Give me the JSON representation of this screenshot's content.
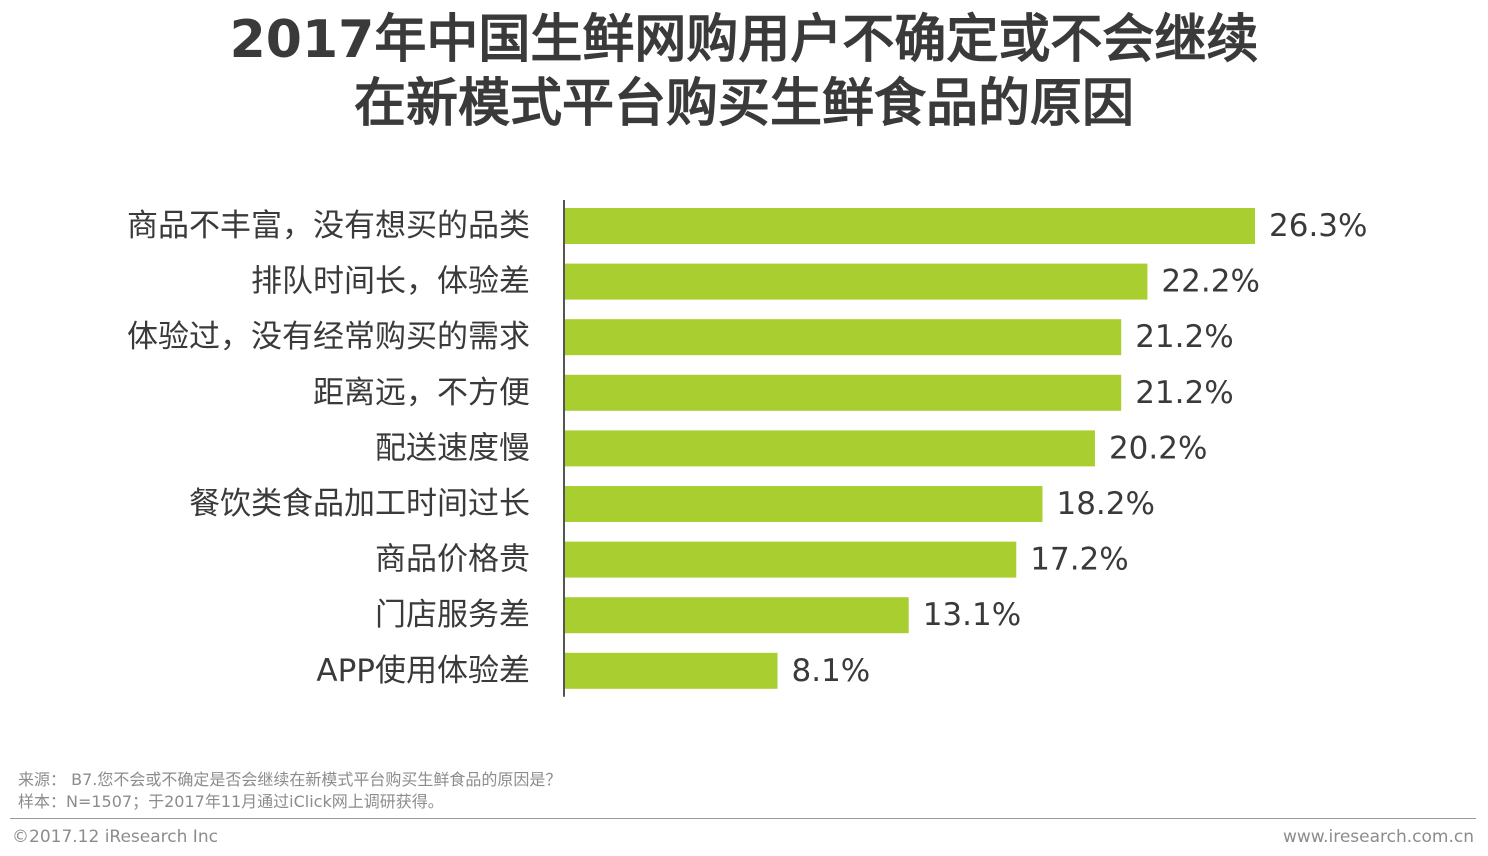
{
  "header": {
    "title_line_1": "2017年中国生鲜网购用户不确定或不会继续",
    "title_line_2": "在新模式平台购买生鲜食品的原因"
  },
  "chart_data": {
    "type": "bar",
    "orientation": "horizontal",
    "categories": [
      "商品不丰富，没有想买的品类",
      "排队时间长，体验差",
      "体验过，没有经常购买的需求",
      "距离远，不方便",
      "配送速度慢",
      "餐饮类食品加工时间过长",
      "商品价格贵",
      "门店服务差",
      "APP使用体验差"
    ],
    "values": [
      26.3,
      22.2,
      21.2,
      21.2,
      20.2,
      18.2,
      17.2,
      13.1,
      8.1
    ],
    "value_labels": [
      "26.3%",
      "22.2%",
      "21.2%",
      "21.2%",
      "20.2%",
      "18.2%",
      "17.2%",
      "13.1%",
      "8.1%"
    ],
    "unit": "%",
    "xlim": [
      0,
      26.3
    ],
    "bar_color": "#a8cf2f",
    "axis_color": "#555555",
    "grid": false,
    "legend": "none"
  },
  "notes": {
    "source": "来源： B7.您不会或不确定是否会继续在新模式平台购买生鲜食品的原因是？",
    "sample": "样本：N=1507；于2017年11月通过iClick网上调研获得。"
  },
  "footer": {
    "copyright": "©2017.12 iResearch Inc",
    "website": "www.iresearch.com.cn"
  }
}
